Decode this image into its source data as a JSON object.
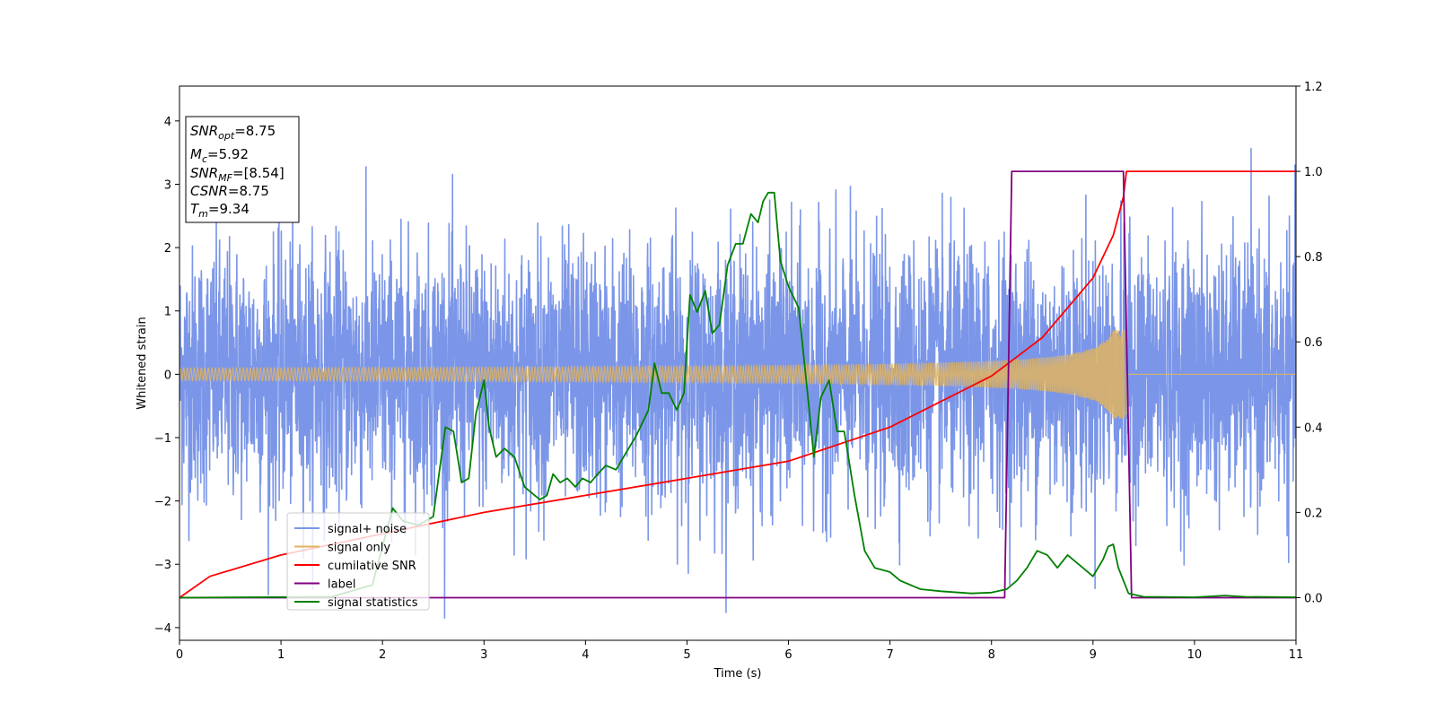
{
  "chart_data": {
    "type": "line",
    "xlabel": "Time (s)",
    "ylabel": "Whitened strain",
    "xlim": [
      0,
      11
    ],
    "ylim": [
      -4.2,
      4.55
    ],
    "y2lim": [
      -0.1,
      1.2
    ],
    "x_ticks": [
      "0",
      "1",
      "2",
      "3",
      "4",
      "5",
      "6",
      "7",
      "8",
      "9",
      "10",
      "11"
    ],
    "y_ticks": [
      {
        "v": 4,
        "label": "4"
      },
      {
        "v": 3,
        "label": "3"
      },
      {
        "v": 2,
        "label": "2"
      },
      {
        "v": 1,
        "label": "1"
      },
      {
        "v": 0,
        "label": "0"
      },
      {
        "v": -1,
        "label": "−1"
      },
      {
        "v": -2,
        "label": "−2"
      },
      {
        "v": -3,
        "label": "−3"
      },
      {
        "v": -4,
        "label": "−4"
      }
    ],
    "y2_ticks": [
      {
        "v": 1.2,
        "label": "1.2"
      },
      {
        "v": 1.0,
        "label": "1.0"
      },
      {
        "v": 0.8,
        "label": "0.8"
      },
      {
        "v": 0.6,
        "label": "0.6"
      },
      {
        "v": 0.4,
        "label": "0.4"
      },
      {
        "v": 0.2,
        "label": "0.2"
      },
      {
        "v": 0.0,
        "label": "0.0"
      }
    ],
    "grid": false,
    "legend_position": "lower-left",
    "annotation_box": {
      "position": "top-left",
      "lines": [
        {
          "base": "SNR",
          "sub": "opt",
          "rest": "=8.75"
        },
        {
          "base": "M",
          "sub": "c",
          "rest": "=5.92"
        },
        {
          "base": "SNR",
          "sub": "MF",
          "rest": "=[8.54]"
        },
        {
          "base": "CSNR",
          "sub": "",
          "rest": "=8.75"
        },
        {
          "base": "T",
          "sub": "m",
          "rest": "=9.34"
        }
      ]
    },
    "series": [
      {
        "name": "signal+ noise",
        "axis": "left",
        "color": "#7b96e8",
        "kind": "noise",
        "sigma": 1.0,
        "x_range": [
          0,
          11
        ]
      },
      {
        "name": "signal only",
        "axis": "left",
        "color": "#e0b460",
        "kind": "chirp",
        "amplitude_start": 0.05,
        "amplitude_end": 0.7,
        "x_range": [
          0,
          9.33
        ]
      },
      {
        "name": "cumilative SNR",
        "axis": "right",
        "color": "#ff0000",
        "x": [
          0,
          0.3,
          1,
          2,
          3,
          4,
          5,
          6,
          7,
          8,
          8.5,
          9,
          9.2,
          9.3,
          9.33,
          11
        ],
        "y": [
          0.0,
          0.05,
          0.1,
          0.15,
          0.2,
          0.24,
          0.28,
          0.32,
          0.4,
          0.52,
          0.61,
          0.75,
          0.85,
          0.94,
          1.0,
          1.0
        ]
      },
      {
        "name": "label",
        "axis": "right",
        "color": "#800080",
        "x": [
          0,
          8.13,
          8.2,
          9.3,
          9.38,
          11
        ],
        "y": [
          0,
          0,
          1,
          1,
          0,
          0
        ]
      },
      {
        "name": "signal statistics",
        "axis": "right",
        "color": "#008000",
        "x": [
          0,
          1.5,
          1.9,
          2.1,
          2.2,
          2.35,
          2.5,
          2.62,
          2.7,
          2.78,
          2.85,
          2.92,
          3.0,
          3.05,
          3.12,
          3.2,
          3.3,
          3.4,
          3.5,
          3.55,
          3.62,
          3.68,
          3.75,
          3.82,
          3.9,
          3.97,
          4.05,
          4.12,
          4.2,
          4.3,
          4.4,
          4.5,
          4.62,
          4.68,
          4.75,
          4.82,
          4.9,
          4.97,
          5.03,
          5.1,
          5.18,
          5.25,
          5.32,
          5.4,
          5.48,
          5.55,
          5.63,
          5.7,
          5.75,
          5.8,
          5.86,
          5.92,
          6.0,
          6.1,
          6.2,
          6.25,
          6.32,
          6.4,
          6.48,
          6.55,
          6.65,
          6.75,
          6.85,
          7.0,
          7.1,
          7.3,
          7.5,
          7.8,
          8.0,
          8.15,
          8.25,
          8.35,
          8.45,
          8.55,
          8.65,
          8.75,
          8.85,
          9.0,
          9.1,
          9.15,
          9.2,
          9.25,
          9.35,
          9.5,
          10,
          10.3,
          10.5,
          11
        ],
        "y": [
          0,
          0.002,
          0.03,
          0.21,
          0.18,
          0.17,
          0.19,
          0.4,
          0.39,
          0.27,
          0.28,
          0.43,
          0.51,
          0.4,
          0.33,
          0.35,
          0.33,
          0.26,
          0.24,
          0.23,
          0.24,
          0.29,
          0.27,
          0.28,
          0.26,
          0.28,
          0.27,
          0.29,
          0.31,
          0.3,
          0.34,
          0.38,
          0.44,
          0.55,
          0.48,
          0.48,
          0.44,
          0.48,
          0.71,
          0.67,
          0.72,
          0.62,
          0.64,
          0.78,
          0.83,
          0.83,
          0.9,
          0.88,
          0.93,
          0.95,
          0.95,
          0.79,
          0.73,
          0.68,
          0.45,
          0.33,
          0.47,
          0.51,
          0.39,
          0.39,
          0.24,
          0.11,
          0.07,
          0.06,
          0.04,
          0.02,
          0.015,
          0.01,
          0.012,
          0.02,
          0.04,
          0.07,
          0.11,
          0.1,
          0.07,
          0.1,
          0.08,
          0.05,
          0.09,
          0.12,
          0.125,
          0.07,
          0.01,
          0.002,
          0.001,
          0.005,
          0.002,
          0.001
        ]
      }
    ]
  }
}
